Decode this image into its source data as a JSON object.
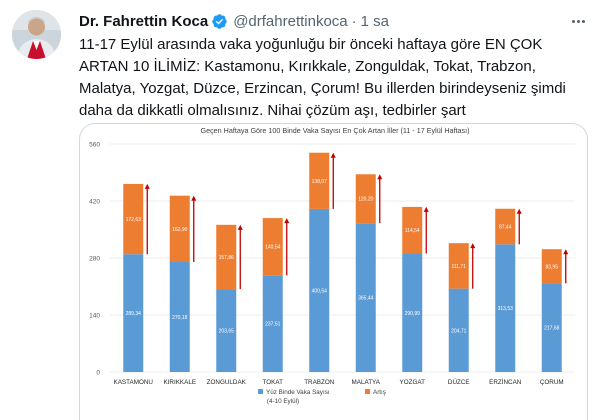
{
  "tweet": {
    "author_name": "Dr. Fahrettin Koca",
    "handle": "@drfahrettinkoca",
    "separator": "·",
    "time": "1 sa",
    "text": "11-17 Eylül arasında vaka yoğunluğu bir önceki haftaya göre EN ÇOK ARTAN 10 İLİMİZ: Kastamonu, Kırıkkale, Zonguldak, Tokat, Trabzon, Malatya, Yozgat, Düzce, Erzincan, Çorum! Bu illerden birindeyseniz şimdi daha da dikkatli olmalısınız. Nihai çözüm aşı, tedbirler şart"
  },
  "icons": {
    "verified": "verified-badge-icon",
    "more": "more-options-icon"
  },
  "colors": {
    "verified": "#1d9bf0",
    "base_series": "#5b9bd5",
    "increase_series": "#ed7d31",
    "arrow": "#c00000"
  },
  "chart_data": {
    "type": "bar",
    "stacked": true,
    "title": "Geçen Haftaya Göre 100 Binde Vaka Sayısı En Çok Artan İller (11 - 17 Eylül Haftası)",
    "categories": [
      "KASTAMONU",
      "KIRIKKALE",
      "ZONGULDAK",
      "TOKAT",
      "TRABZON",
      "MALATYA",
      "YOZGAT",
      "DÜZCE",
      "ERZİNCAN",
      "ÇORUM"
    ],
    "series": [
      {
        "name": "Yüz Binde Vaka Sayısı (4-10 Eylül)",
        "legend_line1": "Yüz Binde Vaka Sayısı",
        "legend_line2": "(4-10 Eylül)",
        "color": "#5b9bd5",
        "values": [
          289.34,
          270.18,
          203.65,
          237.51,
          400.54,
          365.44,
          290.99,
          204.71,
          313.53,
          217.68
        ],
        "labels": [
          "289,34",
          "270,18",
          "203,65",
          "237,51",
          "400,54",
          "365,44",
          "290,99",
          "204,71",
          "313,53",
          "217,68"
        ]
      },
      {
        "name": "Artış",
        "color": "#ed7d31",
        "values": [
          172.63,
          162.9,
          157.86,
          140.54,
          138.07,
          120.2,
          114.54,
          111.71,
          87.44,
          83.95
        ],
        "labels": [
          "172,63",
          "162,90",
          "157,86",
          "140,54",
          "138,07",
          "120,20",
          "114,54",
          "111,71",
          "87,44",
          "83,95"
        ]
      }
    ],
    "y_ticks": [
      "0",
      "140",
      "280",
      "420",
      "560"
    ],
    "ylim": [
      0,
      560
    ],
    "grid": true,
    "legend_position": "bottom"
  }
}
